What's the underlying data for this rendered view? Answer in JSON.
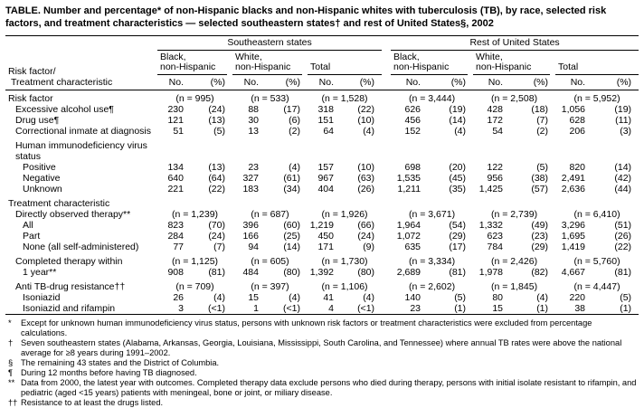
{
  "title": "TABLE. Number and percentage* of non-Hispanic blacks and non-Hispanic whites with tuberculosis (TB), by race, selected risk factors, and treatment characteristics — selected southeastern states† and rest of United States§, 2002",
  "table": {
    "row_header_line1": "Risk factor/",
    "row_header_line2": "Treatment characteristic",
    "group_headers": [
      "Southeastern states",
      "Rest of United States"
    ],
    "subgroups": [
      {
        "line1": "Black,",
        "line2": "non-Hispanic"
      },
      {
        "line1": "White,",
        "line2": "non-Hispanic"
      },
      {
        "line1": "",
        "line2": "Total"
      },
      {
        "line1": "Black,",
        "line2": "non-Hispanic"
      },
      {
        "line1": "White,",
        "line2": "non-Hispanic"
      },
      {
        "line1": "",
        "line2": "Total"
      }
    ],
    "col_headers": [
      "No.",
      "(%)"
    ],
    "rows": [
      {
        "label": "Risk factor",
        "indent": 0,
        "type": "n",
        "gap": false,
        "cells": [
          "(n = 995)",
          "(n = 533)",
          "(n = 1,528)",
          "(n = 3,444)",
          "(n = 2,508)",
          "(n = 5,952)"
        ]
      },
      {
        "label": "Excessive alcohol use¶",
        "indent": 1,
        "type": "data",
        "gap": false,
        "cells": [
          "230",
          "(24)",
          "88",
          "(17)",
          "318",
          "(22)",
          "626",
          "(19)",
          "428",
          "(18)",
          "1,056",
          "(19)"
        ]
      },
      {
        "label": "Drug use¶",
        "indent": 1,
        "type": "data",
        "gap": false,
        "cells": [
          "121",
          "(13)",
          "30",
          "(6)",
          "151",
          "(10)",
          "456",
          "(14)",
          "172",
          "(7)",
          "628",
          "(11)"
        ]
      },
      {
        "label": "Correctional inmate at diagnosis",
        "indent": 1,
        "type": "data",
        "gap": false,
        "cells": [
          "51",
          "(5)",
          "13",
          "(2)",
          "64",
          "(4)",
          "152",
          "(4)",
          "54",
          "(2)",
          "206",
          "(3)"
        ]
      },
      {
        "label": "Human immunodeficiency virus status",
        "indent": 1,
        "type": "section",
        "gap": true,
        "cells": []
      },
      {
        "label": "Positive",
        "indent": 2,
        "type": "data",
        "gap": false,
        "cells": [
          "134",
          "(13)",
          "23",
          "(4)",
          "157",
          "(10)",
          "698",
          "(20)",
          "122",
          "(5)",
          "820",
          "(14)"
        ]
      },
      {
        "label": "Negative",
        "indent": 2,
        "type": "data",
        "gap": false,
        "cells": [
          "640",
          "(64)",
          "327",
          "(61)",
          "967",
          "(63)",
          "1,535",
          "(45)",
          "956",
          "(38)",
          "2,491",
          "(42)"
        ]
      },
      {
        "label": "Unknown",
        "indent": 2,
        "type": "data",
        "gap": false,
        "cells": [
          "221",
          "(22)",
          "183",
          "(34)",
          "404",
          "(26)",
          "1,211",
          "(35)",
          "1,425",
          "(57)",
          "2,636",
          "(44)"
        ]
      },
      {
        "label": "Treatment characteristic",
        "indent": 0,
        "type": "section",
        "gap": true,
        "cells": []
      },
      {
        "label": "Directly observed therapy**",
        "indent": 1,
        "type": "n",
        "gap": false,
        "cells": [
          "(n = 1,239)",
          "(n = 687)",
          "(n = 1,926)",
          "(n = 3,671)",
          "(n = 2,739)",
          "(n = 6,410)"
        ]
      },
      {
        "label": "All",
        "indent": 2,
        "type": "data",
        "gap": false,
        "cells": [
          "823",
          "(70)",
          "396",
          "(60)",
          "1,219",
          "(66)",
          "1,964",
          "(54)",
          "1,332",
          "(49)",
          "3,296",
          "(51)"
        ]
      },
      {
        "label": "Part",
        "indent": 2,
        "type": "data",
        "gap": false,
        "cells": [
          "284",
          "(24)",
          "166",
          "(25)",
          "450",
          "(24)",
          "1,072",
          "(29)",
          "623",
          "(23)",
          "1,695",
          "(26)"
        ]
      },
      {
        "label": "None (all self-administered)",
        "indent": 2,
        "type": "data",
        "gap": false,
        "cells": [
          "77",
          "(7)",
          "94",
          "(14)",
          "171",
          "(9)",
          "635",
          "(17)",
          "784",
          "(29)",
          "1,419",
          "(22)"
        ]
      },
      {
        "label": "Completed therapy within",
        "indent": 1,
        "type": "n",
        "gap": true,
        "cells": [
          "(n = 1,125)",
          "(n = 605)",
          "(n = 1,730)",
          "(n = 3,334)",
          "(n = 2,426)",
          "(n = 5,760)"
        ]
      },
      {
        "label": "1 year**",
        "indent": 2,
        "type": "data",
        "gap": false,
        "cells": [
          "908",
          "(81)",
          "484",
          "(80)",
          "1,392",
          "(80)",
          "2,689",
          "(81)",
          "1,978",
          "(82)",
          "4,667",
          "(81)"
        ]
      },
      {
        "label": "Anti TB-drug resistance††",
        "indent": 1,
        "type": "n",
        "gap": true,
        "cells": [
          "(n = 709)",
          "(n = 397)",
          "(n = 1,106)",
          "(n = 2,602)",
          "(n = 1,845)",
          "(n = 4,447)"
        ]
      },
      {
        "label": "Isoniazid",
        "indent": 2,
        "type": "data",
        "gap": false,
        "cells": [
          "26",
          "(4)",
          "15",
          "(4)",
          "41",
          "(4)",
          "140",
          "(5)",
          "80",
          "(4)",
          "220",
          "(5)"
        ]
      },
      {
        "label": "Isoniazid and rifampin",
        "indent": 2,
        "type": "data",
        "gap": false,
        "cells": [
          "3",
          "(<1)",
          "1",
          "(<1)",
          "4",
          "(<1)",
          "23",
          "(1)",
          "15",
          "(1)",
          "38",
          "(1)"
        ]
      }
    ]
  },
  "footnotes": [
    {
      "marker": "*",
      "text": "Except for unknown human immunodeficiency virus status, persons with unknown risk factors or treatment characteristics were excluded from percentage calculations."
    },
    {
      "marker": "†",
      "text": "Seven southeastern states (Alabama, Arkansas, Georgia, Louisiana, Mississippi, South Carolina, and Tennessee) where annual TB rates were above the national average for ≥8 years during 1991–2002."
    },
    {
      "marker": "§",
      "text": "The remaining 43 states and the District of Columbia."
    },
    {
      "marker": "¶",
      "text": "During 12 months before having TB diagnosed."
    },
    {
      "marker": "**",
      "text": "Data from 2000, the latest year with outcomes. Completed therapy data exclude persons who died during therapy, persons with initial isolate resistant to rifampin, and pediatric (aged <15 years) patients with meningeal, bone or joint, or miliary disease."
    },
    {
      "marker": "††",
      "text": "Resistance to at least the drugs listed."
    }
  ]
}
